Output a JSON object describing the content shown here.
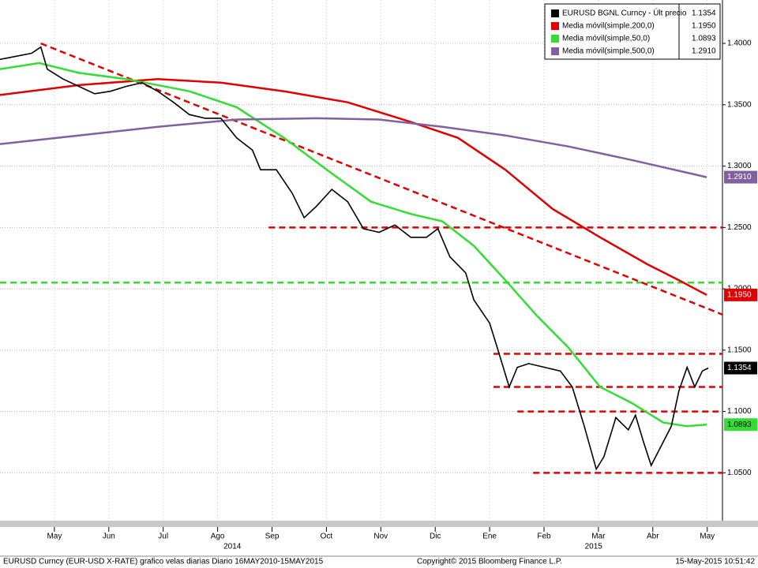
{
  "chart_data": {
    "type": "line",
    "xlim": [
      -0.5,
      12.78
    ],
    "ylim": [
      1.011,
      1.4354
    ],
    "xticks": [
      {
        "value": 0.5,
        "label": "May"
      },
      {
        "value": 1.5,
        "label": "Jun"
      },
      {
        "value": 2.5,
        "label": "Jul"
      },
      {
        "value": 3.5,
        "label": "Ago"
      },
      {
        "value": 4.5,
        "label": "Sep"
      },
      {
        "value": 5.5,
        "label": "Oct"
      },
      {
        "value": 6.5,
        "label": "Nov"
      },
      {
        "value": 7.5,
        "label": "Dic"
      },
      {
        "value": 8.5,
        "label": "Ene"
      },
      {
        "value": 9.5,
        "label": "Feb"
      },
      {
        "value": 10.5,
        "label": "Mar"
      },
      {
        "value": 11.5,
        "label": "Abr"
      },
      {
        "value": 12.5,
        "label": "May"
      }
    ],
    "year_labels": [
      {
        "value": 3.77,
        "label": "2014"
      },
      {
        "value": 10.41,
        "label": "2015"
      }
    ],
    "yticks": [
      {
        "value": 1.4,
        "label": "1.4000"
      },
      {
        "value": 1.35,
        "label": "1.3500"
      },
      {
        "value": 1.3,
        "label": "1.3000"
      },
      {
        "value": 1.25,
        "label": "1.2500"
      },
      {
        "value": 1.2,
        "label": "1.2000"
      },
      {
        "value": 1.15,
        "label": "1.1500"
      },
      {
        "value": 1.1,
        "label": "1.1000"
      },
      {
        "value": 1.05,
        "label": "1.0500"
      }
    ],
    "grid": true,
    "series": [
      {
        "name": "EURUSD BGNL Curncy - Últ precio",
        "color": "#000000",
        "last_label": "1.1354",
        "x": [
          -0.5,
          0.08,
          0.25,
          0.37,
          0.66,
          0.95,
          1.24,
          1.53,
          1.82,
          2.11,
          2.4,
          2.69,
          2.98,
          3.27,
          3.56,
          3.85,
          4.14,
          4.29,
          4.58,
          4.87,
          5.09,
          5.31,
          5.6,
          5.89,
          6.18,
          6.47,
          6.76,
          7.05,
          7.34,
          7.55,
          7.77,
          8.06,
          8.21,
          8.5,
          8.64,
          8.86,
          9.01,
          9.22,
          9.51,
          9.8,
          10.02,
          10.24,
          10.46,
          10.6,
          10.82,
          11.05,
          11.18,
          11.33,
          11.47,
          11.62,
          11.84,
          11.98,
          12.13,
          12.27,
          12.41,
          12.52
        ],
        "values": [
          1.387,
          1.392,
          1.397,
          1.379,
          1.371,
          1.365,
          1.359,
          1.361,
          1.365,
          1.368,
          1.361,
          1.352,
          1.342,
          1.339,
          1.339,
          1.323,
          1.313,
          1.297,
          1.297,
          1.278,
          1.258,
          1.267,
          1.281,
          1.271,
          1.249,
          1.246,
          1.252,
          1.242,
          1.242,
          1.249,
          1.226,
          1.213,
          1.191,
          1.172,
          1.152,
          1.12,
          1.136,
          1.139,
          1.136,
          1.133,
          1.12,
          1.088,
          1.053,
          1.063,
          1.095,
          1.085,
          1.097,
          1.075,
          1.056,
          1.069,
          1.088,
          1.117,
          1.136,
          1.12,
          1.133,
          1.1354
        ]
      },
      {
        "name": "Media móvil(simple,200,0)",
        "color": "#e00000",
        "last_label": "1.1950",
        "x": [
          -0.5,
          0.95,
          2.4,
          3.56,
          4.72,
          5.89,
          7.05,
          7.92,
          8.79,
          9.66,
          10.53,
          11.4,
          11.98,
          12.49
        ],
        "values": [
          1.358,
          1.366,
          1.371,
          1.368,
          1.361,
          1.352,
          1.336,
          1.323,
          1.297,
          1.265,
          1.242,
          1.22,
          1.207,
          1.195
        ]
      },
      {
        "name": "Media móvil(simple,50,0)",
        "color": "#33dd33",
        "last_label": "1.0893",
        "x": [
          -0.5,
          0.22,
          0.95,
          1.82,
          2.98,
          3.85,
          4.72,
          5.6,
          6.32,
          7.05,
          7.63,
          8.21,
          8.79,
          9.37,
          9.95,
          10.53,
          11.11,
          11.69,
          12.13,
          12.49
        ],
        "values": [
          1.379,
          1.384,
          1.376,
          1.371,
          1.361,
          1.348,
          1.323,
          1.294,
          1.271,
          1.261,
          1.255,
          1.235,
          1.207,
          1.178,
          1.152,
          1.12,
          1.107,
          1.091,
          1.088,
          1.0893
        ]
      },
      {
        "name": "Media móvil(simple,500,0)",
        "color": "#8060a0",
        "last_label": "1.2910",
        "x": [
          -0.5,
          0.95,
          2.4,
          3.85,
          5.31,
          6.47,
          7.63,
          8.79,
          9.95,
          11.11,
          12.49
        ],
        "values": [
          1.318,
          1.325,
          1.332,
          1.338,
          1.339,
          1.338,
          1.332,
          1.325,
          1.316,
          1.305,
          1.291
        ]
      }
    ],
    "reference_lines": [
      {
        "value": 1.25,
        "x_start": 4.44,
        "color": "#e00000"
      },
      {
        "value": 1.205,
        "x_start": -0.5,
        "color": "#33dd33"
      },
      {
        "value": 1.147,
        "x_start": 8.57,
        "color": "#e00000"
      },
      {
        "value": 1.12,
        "x_start": 8.57,
        "color": "#e00000"
      },
      {
        "value": 1.1,
        "x_start": 9.01,
        "color": "#e00000"
      },
      {
        "value": 1.05,
        "x_start": 9.3,
        "color": "#e00000"
      }
    ],
    "trend_line": {
      "x": [
        0.25,
        12.78
      ],
      "values": [
        1.4,
        1.179
      ],
      "color": "#e00000"
    },
    "footer": {
      "left": "EURUSD Curncy (EUR-USD X-RATE) grafico velas diarias  Diario 16MAY2010-15MAY2015",
      "center": "Copyright© 2015 Bloomberg Finance L.P.",
      "right": "15-May-2015 10:51:42"
    }
  }
}
